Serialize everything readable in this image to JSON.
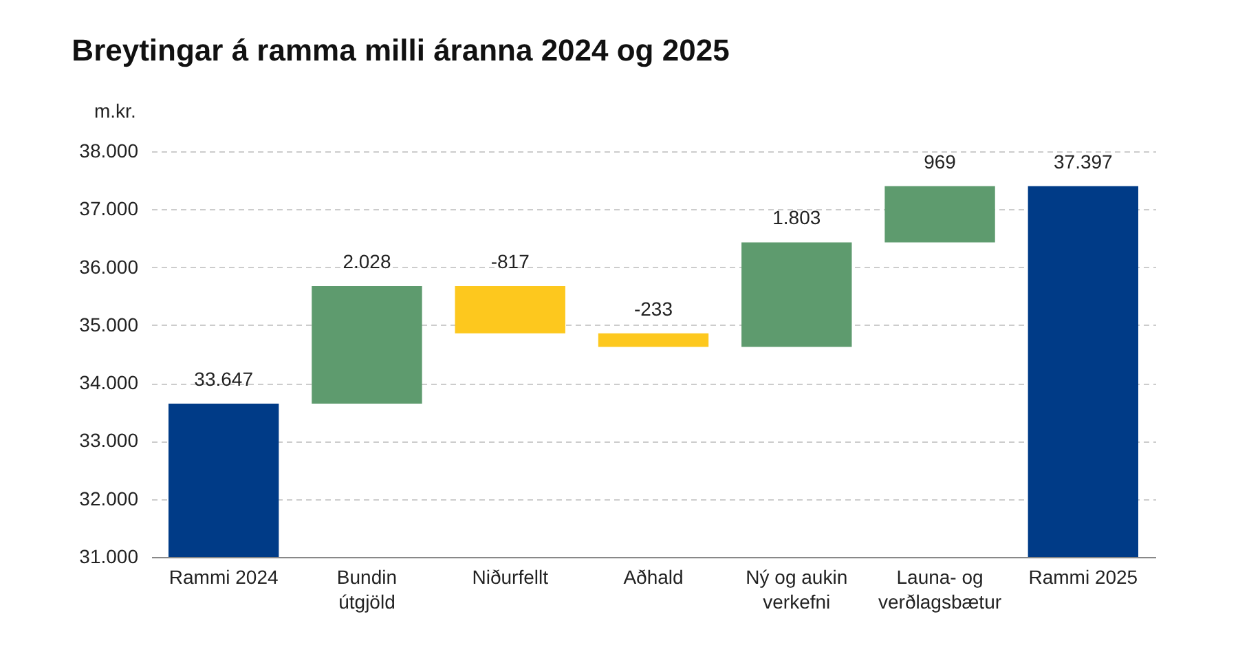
{
  "chart_data": {
    "type": "bar",
    "title": "Breytingar á ramma milli áranna 2024 og 2025",
    "ylabel": "m.kr.",
    "categories": [
      "Rammi 2024",
      "Bundin útgjöld",
      "Niðurfellt",
      "Aðhald",
      "Ný og aukin verkefni",
      "Launa- og verðlagsbætur",
      "Rammi 2025"
    ],
    "values": [
      33647,
      2028,
      -817,
      -233,
      1803,
      969,
      37397
    ],
    "base": [
      null,
      33647,
      35675,
      34858,
      34625,
      36428,
      null
    ],
    "colors": [
      "#003b87",
      "#5e9b6e",
      "#fdc81e",
      "#fdc81e",
      "#5e9b6e",
      "#5e9b6e",
      "#003b87"
    ],
    "value_labels": [
      "33.647",
      "2.028",
      "-817",
      "-233",
      "1.803",
      "969",
      "37.397"
    ],
    "ylim": [
      31000,
      38000
    ],
    "yticks": [
      {
        "value": 31000,
        "label": "31.000"
      },
      {
        "value": 32000,
        "label": "32.000"
      },
      {
        "value": 33000,
        "label": "33.000"
      },
      {
        "value": 34000,
        "label": "34.000"
      },
      {
        "value": 35000,
        "label": "35.000"
      },
      {
        "value": 36000,
        "label": "36.000"
      },
      {
        "value": 37000,
        "label": "37.000"
      },
      {
        "value": 38000,
        "label": "38.000"
      }
    ],
    "grid": "y"
  }
}
